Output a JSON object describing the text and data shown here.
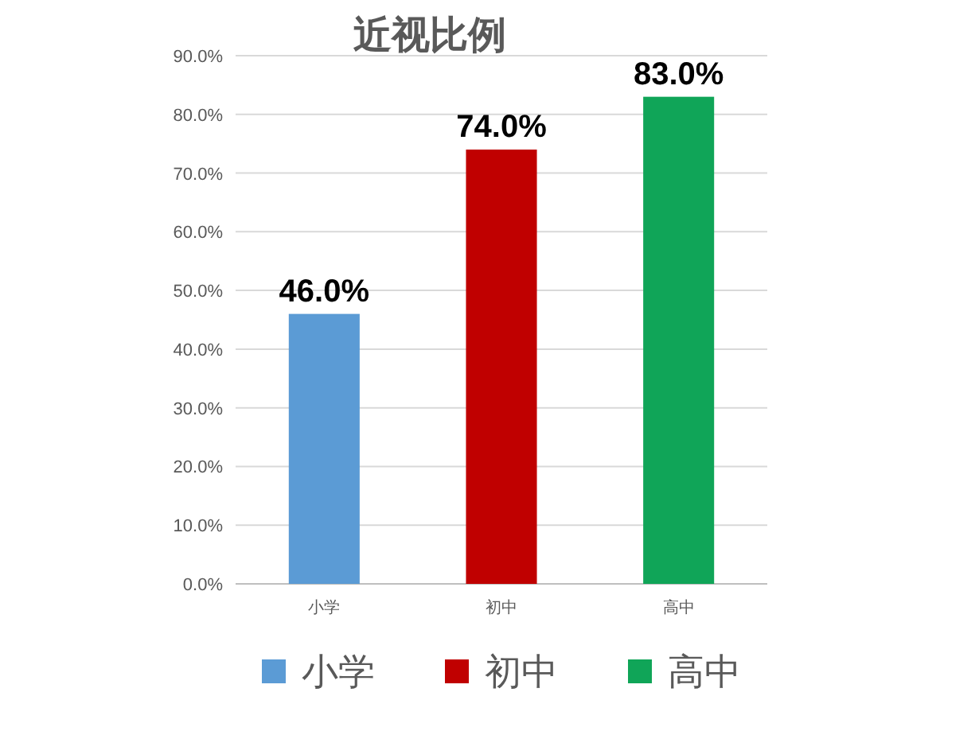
{
  "chart_data": {
    "type": "bar",
    "title": "近视比例",
    "categories": [
      "小学",
      "初中",
      "高中"
    ],
    "stacked": true,
    "series": [
      {
        "name": "小学",
        "color": "#5b9bd5",
        "values": [
          46,
          null,
          null
        ],
        "value_labels": [
          "46.0%",
          null,
          null
        ]
      },
      {
        "name": "初中",
        "color": "#c00000",
        "values": [
          null,
          74,
          null
        ],
        "value_labels": [
          null,
          "74.0%",
          null
        ]
      },
      {
        "name": "高中",
        "color": "#10a558",
        "values": [
          null,
          null,
          83
        ],
        "value_labels": [
          null,
          null,
          "83.0%"
        ]
      }
    ],
    "ylim": [
      0,
      90
    ],
    "yticks": [
      {
        "value": 0,
        "label": "0.0%"
      },
      {
        "value": 10,
        "label": "10.0%"
      },
      {
        "value": 20,
        "label": "20.0%"
      },
      {
        "value": 30,
        "label": "30.0%"
      },
      {
        "value": 40,
        "label": "40.0%"
      },
      {
        "value": 50,
        "label": "50.0%"
      },
      {
        "value": 60,
        "label": "60.0%"
      },
      {
        "value": 70,
        "label": "70.0%"
      },
      {
        "value": 80,
        "label": "80.0%"
      },
      {
        "value": 90,
        "label": "90.0%"
      }
    ],
    "grid": "y",
    "legend": "bottom"
  }
}
